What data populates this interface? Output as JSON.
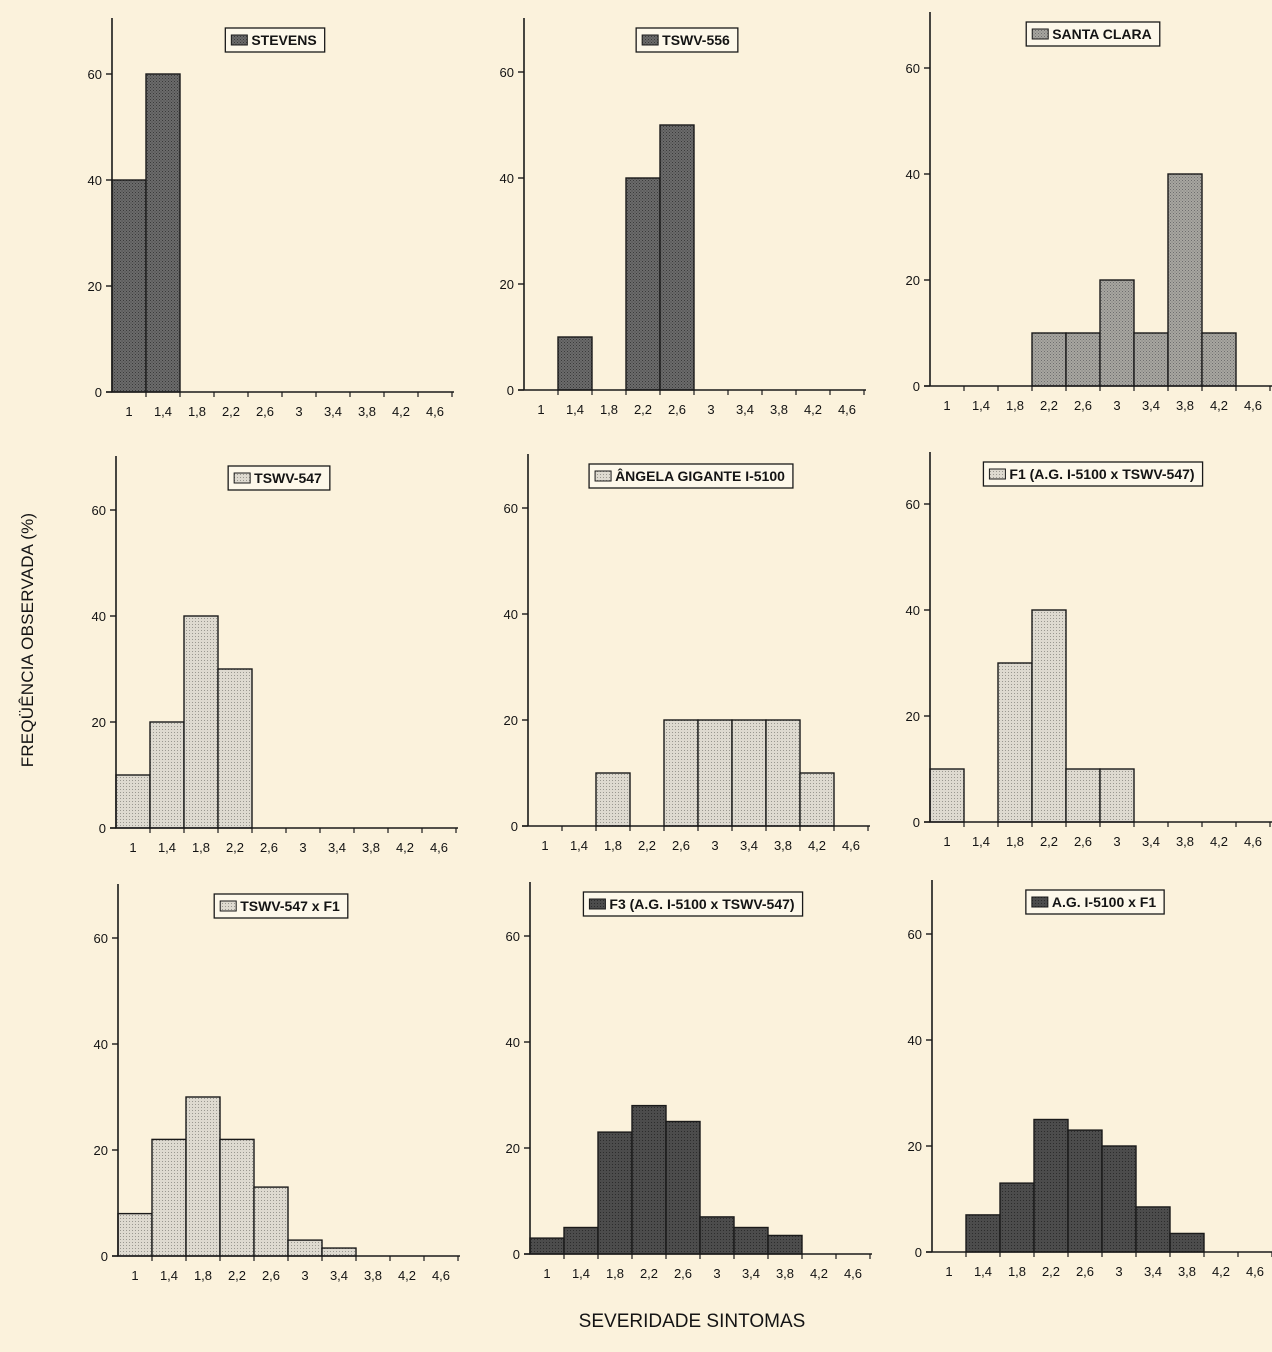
{
  "figure": {
    "ylabel": "FREQÜÊNCIA OBSERVADA (%)",
    "xlabel": "SEVERIDADE SINTOMAS"
  },
  "colors": {
    "background": "#fbf2dc",
    "dark_fill": "#5c5c5c",
    "medium_fill": "#8e8e8e",
    "light_fill": "#d2cfc6",
    "darkest_fill": "#444444"
  },
  "chart_data": [
    {
      "type": "bar",
      "title": "STEVENS",
      "fill": "dark",
      "categories": [
        "1",
        "1,4",
        "1,8",
        "2,2",
        "2,6",
        "3",
        "3,4",
        "3,8",
        "4,2",
        "4,6"
      ],
      "values": [
        40,
        60,
        0,
        0,
        0,
        0,
        0,
        0,
        0,
        0
      ],
      "yticks": [
        "0",
        "20",
        "40",
        "60"
      ],
      "ylim": [
        0,
        70
      ]
    },
    {
      "type": "bar",
      "title": "TSWV-556",
      "fill": "dark",
      "categories": [
        "1",
        "1,4",
        "1,8",
        "2,2",
        "2,6",
        "3",
        "3,4",
        "3,8",
        "4,2",
        "4,6"
      ],
      "values": [
        0,
        10,
        0,
        40,
        50,
        0,
        0,
        0,
        0,
        0
      ],
      "yticks": [
        "0",
        "20",
        "40",
        "60"
      ],
      "ylim": [
        0,
        70
      ]
    },
    {
      "type": "bar",
      "title": "SANTA CLARA",
      "fill": "medium",
      "categories": [
        "1",
        "1,4",
        "1,8",
        "2,2",
        "2,6",
        "3",
        "3,4",
        "3,8",
        "4,2",
        "4,6"
      ],
      "values": [
        0,
        0,
        0,
        10,
        10,
        20,
        10,
        40,
        10,
        0
      ],
      "yticks": [
        "0",
        "20",
        "40",
        "60"
      ],
      "ylim": [
        0,
        70
      ]
    },
    {
      "type": "bar",
      "title": "TSWV-547",
      "fill": "light",
      "categories": [
        "1",
        "1,4",
        "1,8",
        "2,2",
        "2,6",
        "3",
        "3,4",
        "3,8",
        "4,2",
        "4,6"
      ],
      "values": [
        10,
        20,
        40,
        30,
        0,
        0,
        0,
        0,
        0,
        0
      ],
      "yticks": [
        "0",
        "20",
        "40",
        "60"
      ],
      "ylim": [
        0,
        70
      ]
    },
    {
      "type": "bar",
      "title": "ÂNGELA GIGANTE I-5100",
      "fill": "light",
      "categories": [
        "1",
        "1,4",
        "1,8",
        "2,2",
        "2,6",
        "3",
        "3,4",
        "3,8",
        "4,2",
        "4,6"
      ],
      "values": [
        0,
        0,
        10,
        0,
        20,
        20,
        20,
        20,
        10,
        0
      ],
      "yticks": [
        "0",
        "20",
        "40",
        "60"
      ],
      "ylim": [
        0,
        70
      ]
    },
    {
      "type": "bar",
      "title": "F1 (A.G. I-5100 x TSWV-547)",
      "fill": "light",
      "categories": [
        "1",
        "1,4",
        "1,8",
        "2,2",
        "2,6",
        "3",
        "3,4",
        "3,8",
        "4,2",
        "4,6"
      ],
      "values": [
        10,
        0,
        30,
        40,
        10,
        10,
        0,
        0,
        0,
        0
      ],
      "yticks": [
        "0",
        "20",
        "40",
        "60"
      ],
      "ylim": [
        0,
        70
      ]
    },
    {
      "type": "bar",
      "title": "TSWV-547 x F1",
      "fill": "light",
      "categories": [
        "1",
        "1,4",
        "1,8",
        "2,2",
        "2,6",
        "3",
        "3,4",
        "3,8",
        "4,2",
        "4,6"
      ],
      "values": [
        8,
        22,
        30,
        22,
        13,
        3,
        1.5,
        0,
        0,
        0
      ],
      "yticks": [
        "0",
        "20",
        "40",
        "60"
      ],
      "ylim": [
        0,
        70
      ]
    },
    {
      "type": "bar",
      "title": "F3 (A.G. I-5100 x TSWV-547)",
      "fill": "darkest",
      "categories": [
        "1",
        "1,4",
        "1,8",
        "2,2",
        "2,6",
        "3",
        "3,4",
        "3,8",
        "4,2",
        "4,6"
      ],
      "values": [
        3,
        5,
        23,
        28,
        25,
        7,
        5,
        3.5,
        0,
        0
      ],
      "yticks": [
        "0",
        "20",
        "40",
        "60"
      ],
      "ylim": [
        0,
        70
      ]
    },
    {
      "type": "bar",
      "title": "A.G. I-5100 x F1",
      "fill": "darkest",
      "categories": [
        "1",
        "1,4",
        "1,8",
        "2,2",
        "2,6",
        "3",
        "3,4",
        "3,8",
        "4,2",
        "4,6"
      ],
      "values": [
        0,
        7,
        13,
        25,
        23,
        20,
        8.5,
        3.5,
        0,
        0
      ],
      "yticks": [
        "0",
        "20",
        "40",
        "60"
      ],
      "ylim": [
        0,
        70
      ]
    }
  ]
}
